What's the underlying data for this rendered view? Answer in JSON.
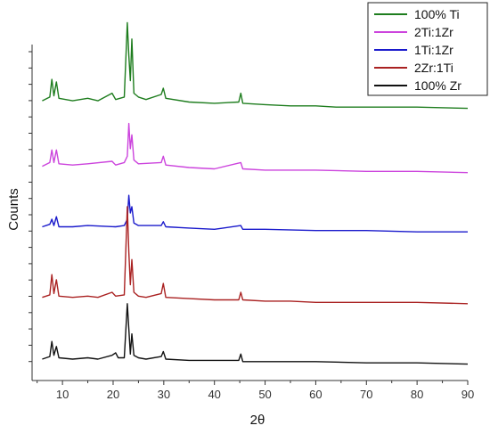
{
  "chart_data": {
    "type": "line",
    "xlabel": "2θ",
    "ylabel": "Counts",
    "xlim": [
      4,
      90
    ],
    "xticks": [
      10,
      20,
      30,
      40,
      50,
      60,
      70,
      80,
      90
    ],
    "grid": false,
    "legend_position": "top-right",
    "y_tick_labels_shown": false,
    "series": [
      {
        "name": "100% Ti",
        "color": "#1e7d1e",
        "points": [
          [
            6,
            21.0
          ],
          [
            7.5,
            21.3
          ],
          [
            7.9,
            22.7
          ],
          [
            8.3,
            21.4
          ],
          [
            8.8,
            22.5
          ],
          [
            9.3,
            21.2
          ],
          [
            12,
            21.0
          ],
          [
            15,
            21.2
          ],
          [
            17,
            21.0
          ],
          [
            19.8,
            21.6
          ],
          [
            20.5,
            21.1
          ],
          [
            22.2,
            21.3
          ],
          [
            22.8,
            27.2
          ],
          [
            23.1,
            24.6
          ],
          [
            23.4,
            22.6
          ],
          [
            23.7,
            25.9
          ],
          [
            24.1,
            21.6
          ],
          [
            25,
            21.3
          ],
          [
            26.5,
            21.1
          ],
          [
            29.5,
            21.5
          ],
          [
            29.9,
            22.0
          ],
          [
            30.4,
            21.2
          ],
          [
            35,
            20.9
          ],
          [
            40,
            20.8
          ],
          [
            44.8,
            20.9
          ],
          [
            45.2,
            21.6
          ],
          [
            45.6,
            20.8
          ],
          [
            50,
            20.7
          ],
          [
            55,
            20.6
          ],
          [
            60,
            20.6
          ],
          [
            64,
            20.5
          ],
          [
            70,
            20.5
          ],
          [
            80,
            20.5
          ],
          [
            90,
            20.4
          ]
        ]
      },
      {
        "name": "2Ti:1Zr",
        "color": "#cc44dd",
        "points": [
          [
            6,
            15.8
          ],
          [
            7.5,
            16.1
          ],
          [
            7.9,
            17.1
          ],
          [
            8.3,
            16.1
          ],
          [
            8.8,
            17.1
          ],
          [
            9.3,
            16.0
          ],
          [
            12,
            15.9
          ],
          [
            15,
            16.0
          ],
          [
            19.8,
            16.2
          ],
          [
            20.5,
            15.9
          ],
          [
            22.2,
            16.1
          ],
          [
            22.8,
            16.6
          ],
          [
            23.1,
            19.2
          ],
          [
            23.4,
            17.2
          ],
          [
            23.7,
            18.3
          ],
          [
            24.1,
            16.3
          ],
          [
            25,
            16.0
          ],
          [
            29.5,
            16.1
          ],
          [
            29.9,
            16.6
          ],
          [
            30.4,
            15.9
          ],
          [
            35,
            15.7
          ],
          [
            40,
            15.6
          ],
          [
            45.2,
            16.1
          ],
          [
            45.6,
            15.6
          ],
          [
            50,
            15.5
          ],
          [
            60,
            15.5
          ],
          [
            70,
            15.4
          ],
          [
            80,
            15.4
          ],
          [
            90,
            15.3
          ]
        ]
      },
      {
        "name": "1Ti:1Zr",
        "color": "#1a1acc",
        "points": [
          [
            6,
            11.0
          ],
          [
            7.5,
            11.2
          ],
          [
            7.9,
            11.6
          ],
          [
            8.3,
            11.1
          ],
          [
            8.8,
            11.8
          ],
          [
            9.3,
            11.0
          ],
          [
            12,
            11.0
          ],
          [
            15,
            11.1
          ],
          [
            20.5,
            11.0
          ],
          [
            22.2,
            11.1
          ],
          [
            22.8,
            11.6
          ],
          [
            23.1,
            13.5
          ],
          [
            23.4,
            12.1
          ],
          [
            23.7,
            12.6
          ],
          [
            24.1,
            11.3
          ],
          [
            25,
            11.1
          ],
          [
            29.5,
            11.1
          ],
          [
            29.9,
            11.4
          ],
          [
            30.4,
            11.0
          ],
          [
            35,
            10.9
          ],
          [
            40,
            10.8
          ],
          [
            45.2,
            11.1
          ],
          [
            45.6,
            10.8
          ],
          [
            50,
            10.8
          ],
          [
            60,
            10.7
          ],
          [
            70,
            10.7
          ],
          [
            80,
            10.6
          ],
          [
            90,
            10.6
          ]
        ]
      },
      {
        "name": "2Zr:1Ti",
        "color": "#aa2222",
        "points": [
          [
            6,
            5.4
          ],
          [
            7.5,
            5.6
          ],
          [
            7.9,
            7.2
          ],
          [
            8.3,
            5.7
          ],
          [
            8.8,
            6.8
          ],
          [
            9.3,
            5.5
          ],
          [
            12,
            5.4
          ],
          [
            15,
            5.5
          ],
          [
            17,
            5.4
          ],
          [
            19.8,
            5.8
          ],
          [
            20.5,
            5.5
          ],
          [
            22.2,
            5.6
          ],
          [
            22.8,
            12.6
          ],
          [
            23.1,
            9.0
          ],
          [
            23.4,
            6.4
          ],
          [
            23.7,
            8.4
          ],
          [
            24.1,
            5.8
          ],
          [
            25,
            5.5
          ],
          [
            26.5,
            5.4
          ],
          [
            29.5,
            5.7
          ],
          [
            29.9,
            6.5
          ],
          [
            30.4,
            5.4
          ],
          [
            35,
            5.3
          ],
          [
            40,
            5.2
          ],
          [
            44.8,
            5.2
          ],
          [
            45.2,
            5.8
          ],
          [
            45.6,
            5.2
          ],
          [
            50,
            5.1
          ],
          [
            55,
            5.1
          ],
          [
            60,
            5.0
          ],
          [
            70,
            5.0
          ],
          [
            80,
            5.0
          ],
          [
            90,
            4.9
          ]
        ]
      },
      {
        "name": "100% Zr",
        "color": "#111111",
        "points": [
          [
            6,
            0.5
          ],
          [
            7.5,
            0.7
          ],
          [
            7.9,
            1.9
          ],
          [
            8.3,
            0.8
          ],
          [
            8.8,
            1.5
          ],
          [
            9.3,
            0.6
          ],
          [
            12,
            0.5
          ],
          [
            15,
            0.6
          ],
          [
            17,
            0.5
          ],
          [
            19.8,
            0.8
          ],
          [
            20.5,
            1.0
          ],
          [
            21,
            0.6
          ],
          [
            22.2,
            0.6
          ],
          [
            22.8,
            4.9
          ],
          [
            23.1,
            2.9
          ],
          [
            23.4,
            0.9
          ],
          [
            23.7,
            2.5
          ],
          [
            24.1,
            0.8
          ],
          [
            25,
            0.6
          ],
          [
            26.5,
            0.5
          ],
          [
            29.5,
            0.7
          ],
          [
            29.9,
            1.1
          ],
          [
            30.4,
            0.5
          ],
          [
            35,
            0.4
          ],
          [
            40,
            0.4
          ],
          [
            44.8,
            0.4
          ],
          [
            45.2,
            0.9
          ],
          [
            45.6,
            0.3
          ],
          [
            50,
            0.3
          ],
          [
            55,
            0.3
          ],
          [
            60,
            0.3
          ],
          [
            70,
            0.2
          ],
          [
            80,
            0.2
          ],
          [
            90,
            0.1
          ]
        ]
      }
    ]
  }
}
